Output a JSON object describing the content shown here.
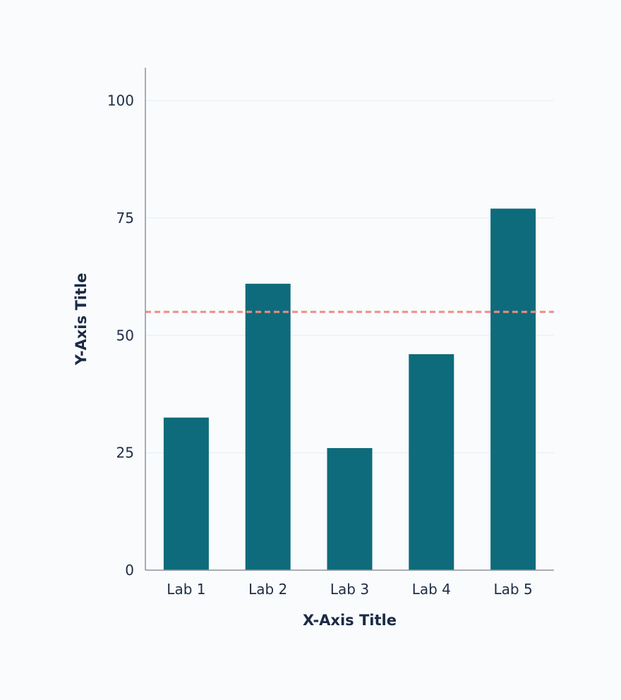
{
  "chart_data": {
    "type": "bar",
    "categories": [
      "Lab 1",
      "Lab 2",
      "Lab 3",
      "Lab 4",
      "Lab 5"
    ],
    "values": [
      32.5,
      61,
      26,
      46,
      77
    ],
    "xlabel": "X-Axis Title",
    "ylabel": "Y-Axis Title",
    "ylim": [
      0,
      107
    ],
    "yticks": [
      "0",
      "25",
      "50",
      "75",
      "100"
    ],
    "reference_line": {
      "value": 55,
      "style": "dashed"
    },
    "grid": true,
    "bar_color": "#0e6b7b",
    "reference_line_color": "#f28b7f"
  }
}
